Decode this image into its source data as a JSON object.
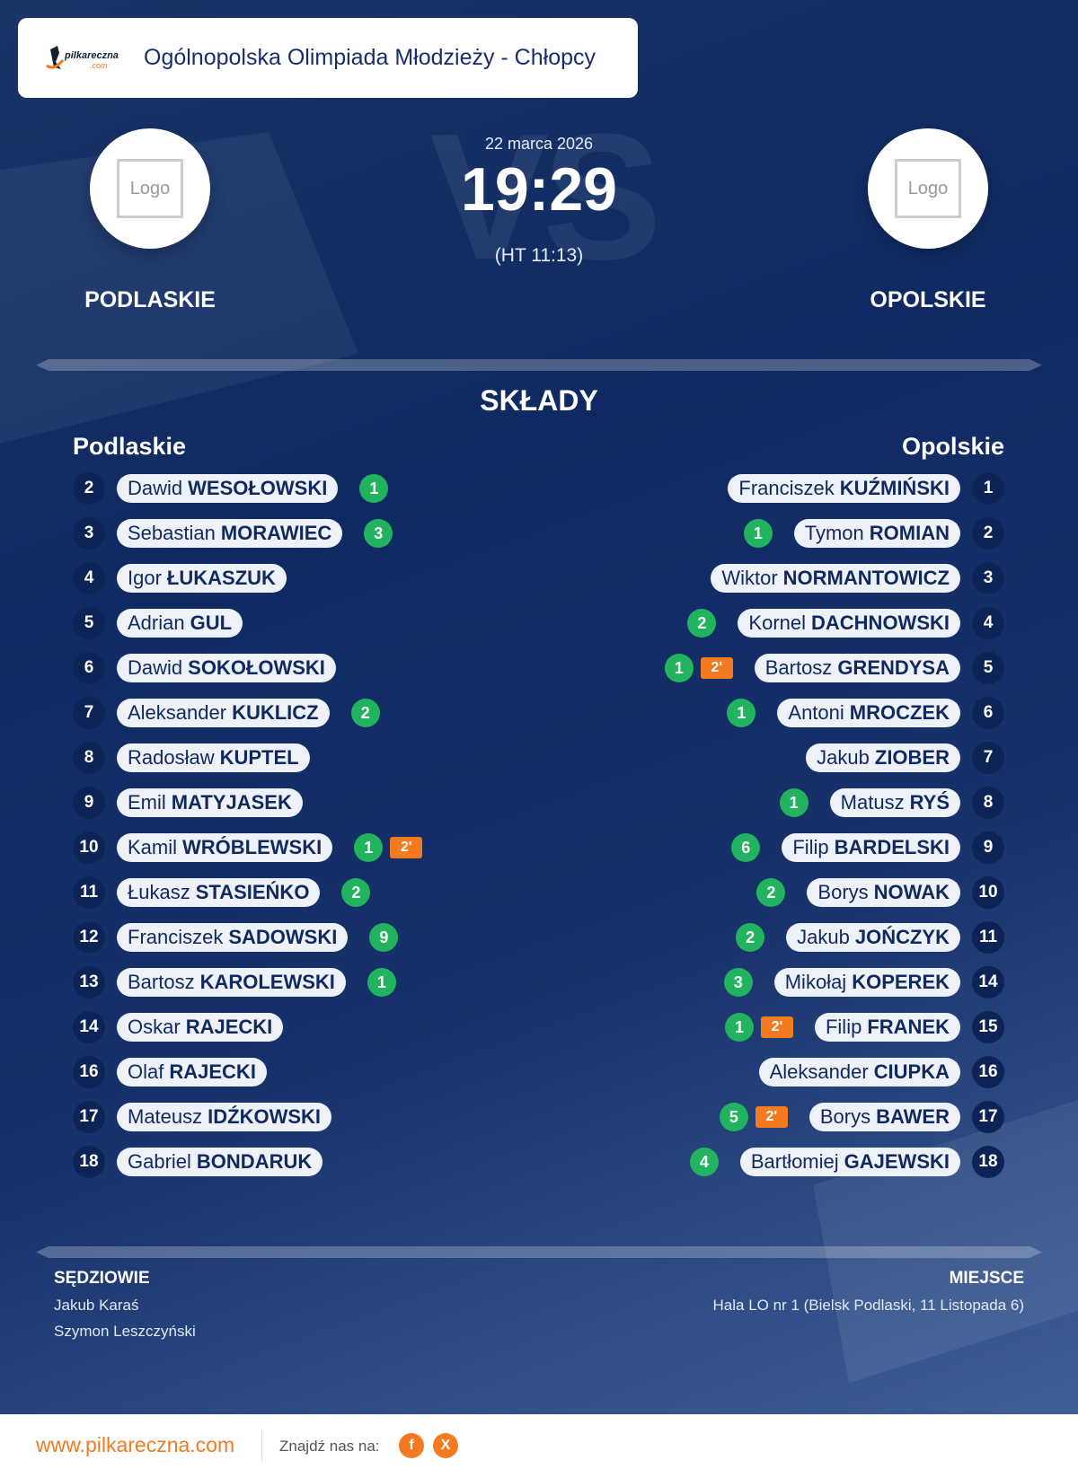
{
  "header": {
    "title": "Ogólnopolska Olimpiada Młodzieży - Chłopcy",
    "brand": "pilkareczna.com"
  },
  "match": {
    "date": "22 marca 2026",
    "score": "19:29",
    "halftime": "(HT 11:13)",
    "vs": "VS"
  },
  "home": {
    "name": "PODLASKIE",
    "logo_text": "Logo",
    "label": "Podlaskie"
  },
  "away": {
    "name": "OPOLSKIE",
    "logo_text": "Logo",
    "label": "Opolskie"
  },
  "lineups_title": "SKŁADY",
  "colors": {
    "goal": "#22b35e",
    "penalty": "#f47a20",
    "accent": "#f47a20",
    "navy": "#0f2a62"
  },
  "home_players": [
    {
      "num": "2",
      "first": "Dawid",
      "last": "WESOŁOWSKI",
      "goals": "1",
      "pen": ""
    },
    {
      "num": "3",
      "first": "Sebastian",
      "last": "MORAWIEC",
      "goals": "3",
      "pen": ""
    },
    {
      "num": "4",
      "first": "Igor",
      "last": "ŁUKASZUK",
      "goals": "",
      "pen": ""
    },
    {
      "num": "5",
      "first": "Adrian",
      "last": "GUL",
      "goals": "",
      "pen": ""
    },
    {
      "num": "6",
      "first": "Dawid",
      "last": "SOKOŁOWSKI",
      "goals": "",
      "pen": ""
    },
    {
      "num": "7",
      "first": "Aleksander",
      "last": "KUKLICZ",
      "goals": "2",
      "pen": ""
    },
    {
      "num": "8",
      "first": "Radosław",
      "last": "KUPTEL",
      "goals": "",
      "pen": ""
    },
    {
      "num": "9",
      "first": "Emil",
      "last": "MATYJASEK",
      "goals": "",
      "pen": ""
    },
    {
      "num": "10",
      "first": "Kamil",
      "last": "WRÓBLEWSKI",
      "goals": "1",
      "pen": "2'"
    },
    {
      "num": "11",
      "first": "Łukasz",
      "last": "STASIEŃKO",
      "goals": "2",
      "pen": ""
    },
    {
      "num": "12",
      "first": "Franciszek",
      "last": "SADOWSKI",
      "goals": "9",
      "pen": ""
    },
    {
      "num": "13",
      "first": "Bartosz",
      "last": "KAROLEWSKI",
      "goals": "1",
      "pen": ""
    },
    {
      "num": "14",
      "first": "Oskar",
      "last": "RAJECKI",
      "goals": "",
      "pen": ""
    },
    {
      "num": "16",
      "first": "Olaf",
      "last": "RAJECKI",
      "goals": "",
      "pen": ""
    },
    {
      "num": "17",
      "first": "Mateusz",
      "last": "IDŹKOWSKI",
      "goals": "",
      "pen": ""
    },
    {
      "num": "18",
      "first": "Gabriel",
      "last": "BONDARUK",
      "goals": "",
      "pen": ""
    }
  ],
  "away_players": [
    {
      "num": "1",
      "first": "Franciszek",
      "last": "KUŹMIŃSKI",
      "goals": "",
      "pen": ""
    },
    {
      "num": "2",
      "first": "Tymon",
      "last": "ROMIAN",
      "goals": "1",
      "pen": ""
    },
    {
      "num": "3",
      "first": "Wiktor",
      "last": "NORMANTOWICZ",
      "goals": "",
      "pen": ""
    },
    {
      "num": "4",
      "first": "Kornel",
      "last": "DACHNOWSKI",
      "goals": "2",
      "pen": ""
    },
    {
      "num": "5",
      "first": "Bartosz",
      "last": "GRENDYSA",
      "goals": "1",
      "pen": "2'"
    },
    {
      "num": "6",
      "first": "Antoni",
      "last": "MROCZEK",
      "goals": "1",
      "pen": ""
    },
    {
      "num": "7",
      "first": "Jakub",
      "last": "ZIOBER",
      "goals": "",
      "pen": ""
    },
    {
      "num": "8",
      "first": "Matusz",
      "last": "RYŚ",
      "goals": "1",
      "pen": ""
    },
    {
      "num": "9",
      "first": "Filip",
      "last": "BARDELSKI",
      "goals": "6",
      "pen": ""
    },
    {
      "num": "10",
      "first": "Borys",
      "last": "NOWAK",
      "goals": "2",
      "pen": ""
    },
    {
      "num": "11",
      "first": "Jakub",
      "last": "JOŃCZYK",
      "goals": "2",
      "pen": ""
    },
    {
      "num": "14",
      "first": "Mikołaj",
      "last": "KOPEREK",
      "goals": "3",
      "pen": ""
    },
    {
      "num": "15",
      "first": "Filip",
      "last": "FRANEK",
      "goals": "1",
      "pen": "2'"
    },
    {
      "num": "16",
      "first": "Aleksander",
      "last": "CIUPKA",
      "goals": "",
      "pen": ""
    },
    {
      "num": "17",
      "first": "Borys",
      "last": "BAWER",
      "goals": "5",
      "pen": "2'"
    },
    {
      "num": "18",
      "first": "Bartłomiej",
      "last": "GAJEWSKI",
      "goals": "4",
      "pen": ""
    }
  ],
  "referees": {
    "title": "SĘDZIOWIE",
    "names": [
      "Jakub Karaś",
      "Szymon Leszczyński"
    ]
  },
  "venue": {
    "title": "MIEJSCE",
    "text": "Hala LO nr 1 (Bielsk Podlaski, 11 Listopada 6)"
  },
  "footer": {
    "website": "www.pilkareczna.com",
    "find_us": "Znajdź nas na:",
    "social": [
      {
        "icon": "facebook-icon",
        "glyph": "f"
      },
      {
        "icon": "x-icon",
        "glyph": "X"
      }
    ]
  }
}
